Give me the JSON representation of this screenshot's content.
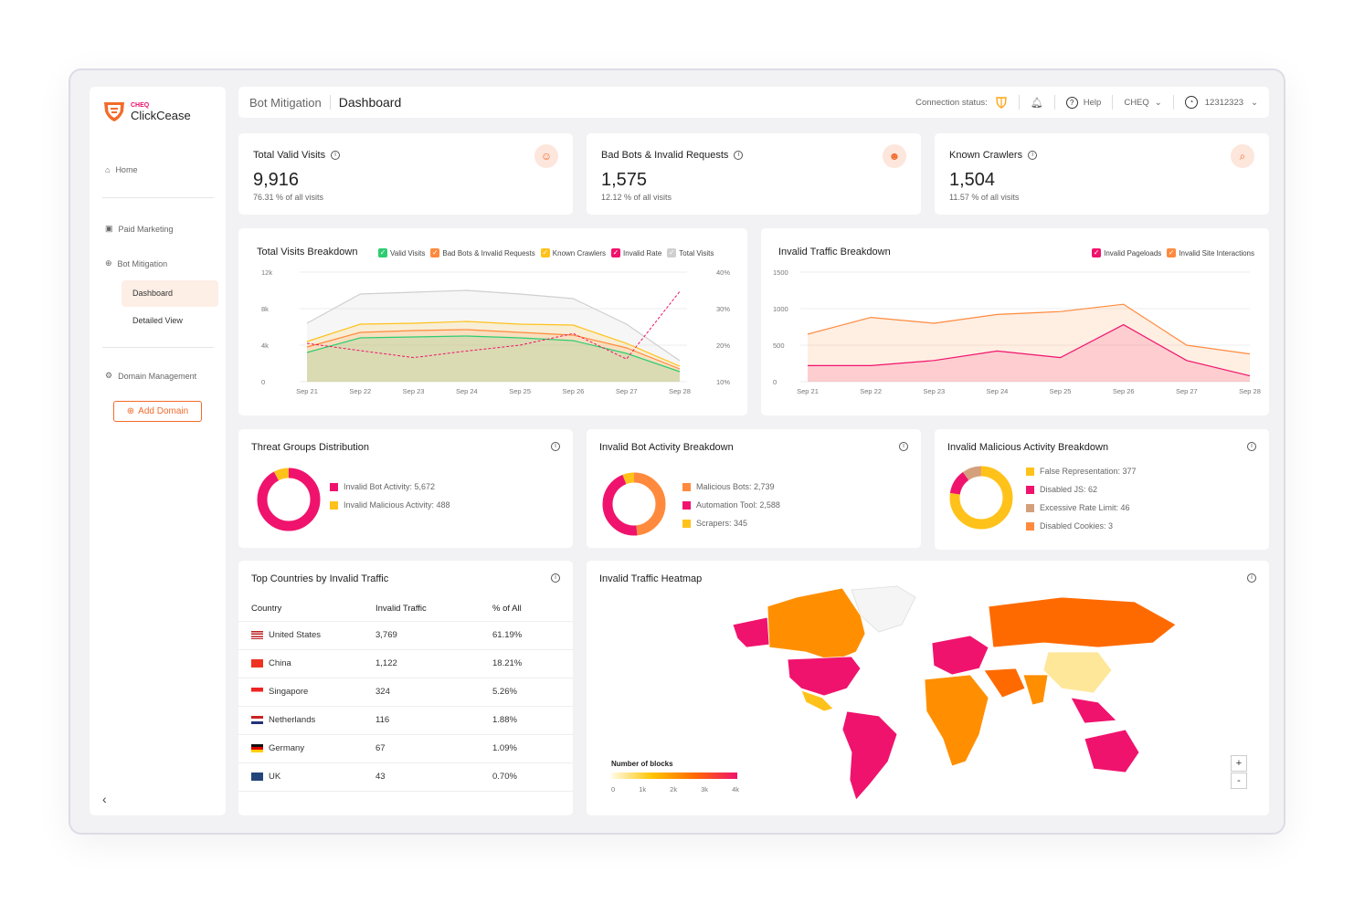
{
  "brand": {
    "top": "CHEQ",
    "name": "ClickCease"
  },
  "sidebar": {
    "home": "Home",
    "paid": "Paid Marketing",
    "bot": "Bot Mitigation",
    "dashboard": "Dashboard",
    "detailed": "Detailed View",
    "domain": "Domain Management",
    "add_domain": "Add Domain",
    "collapse": "‹"
  },
  "header": {
    "breadcrumb": "Bot Mitigation",
    "title": "Dashboard",
    "connection": "Connection status:",
    "help": "Help",
    "org": "CHEQ",
    "user": "12312323"
  },
  "kpis": [
    {
      "title": "Total Valid Visits",
      "value": "9,916",
      "sub": "76.31 % of all visits"
    },
    {
      "title": "Bad Bots & Invalid Requests",
      "value": "1,575",
      "sub": "12.12 % of all visits"
    },
    {
      "title": "Known Crawlers",
      "value": "1,504",
      "sub": "11.57 % of all visits"
    }
  ],
  "colors": {
    "green": "#2ecc71",
    "orange": "#ff8a3d",
    "yellow": "#ffc21a",
    "pink": "#f0136d",
    "gray": "#cfcfcf"
  },
  "chart_data": [
    {
      "type": "area",
      "title": "Total Visits Breakdown",
      "x": [
        "Sep 21",
        "Sep 22",
        "Sep 23",
        "Sep 24",
        "Sep 25",
        "Sep 26",
        "Sep 27",
        "Sep 28"
      ],
      "yticks": [
        "0",
        "4k",
        "8k",
        "12k"
      ],
      "ylim": [
        0,
        12000
      ],
      "y2ticks": [
        "10%",
        "20%",
        "30%",
        "40%"
      ],
      "y2lim": [
        10,
        40
      ],
      "series": [
        {
          "name": "Total Visits",
          "color": "#cfcfcf",
          "values": [
            6400,
            9600,
            9800,
            10000,
            9600,
            9100,
            6300,
            2300
          ]
        },
        {
          "name": "Known Crawlers",
          "color": "#ffc21a",
          "values": [
            4400,
            6300,
            6400,
            6600,
            6300,
            6200,
            4200,
            1700
          ]
        },
        {
          "name": "Bad Bots & Invalid Requests",
          "color": "#ff8a3d",
          "values": [
            3800,
            5400,
            5600,
            5700,
            5400,
            5100,
            3700,
            1400
          ]
        },
        {
          "name": "Valid Visits",
          "color": "#2ecc71",
          "values": [
            3200,
            4800,
            4900,
            5000,
            4800,
            4500,
            3100,
            1100
          ]
        },
        {
          "name": "Invalid Rate",
          "color": "#f0136d",
          "axis": "right",
          "values": [
            20.5,
            18.5,
            16.6,
            18.4,
            20,
            23.2,
            16.2,
            34.7
          ]
        }
      ],
      "legend": [
        "Valid Visits",
        "Bad Bots & Invalid Requests",
        "Known Crawlers",
        "Invalid Rate",
        "Total Visits"
      ]
    },
    {
      "type": "area",
      "title": "Invalid Traffic Breakdown",
      "x": [
        "Sep 21",
        "Sep 22",
        "Sep 23",
        "Sep 24",
        "Sep 25",
        "Sep 26",
        "Sep 27",
        "Sep 28"
      ],
      "yticks": [
        "0",
        "500",
        "1000",
        "1500"
      ],
      "ylim": [
        0,
        1500
      ],
      "series": [
        {
          "name": "Invalid Site Interactions",
          "color": "#ff8a3d",
          "values": [
            650,
            880,
            800,
            920,
            960,
            1060,
            500,
            380
          ]
        },
        {
          "name": "Invalid Pageloads",
          "color": "#f0136d",
          "values": [
            220,
            220,
            290,
            420,
            330,
            780,
            290,
            80
          ]
        }
      ],
      "legend": [
        "Invalid Pageloads",
        "Invalid Site Interactions"
      ]
    },
    {
      "type": "pie",
      "title": "Threat Groups Distribution",
      "slices": [
        {
          "label": "Invalid Bot Activity: 5,672",
          "value": 5672,
          "color": "#f0136d"
        },
        {
          "label": "Invalid Malicious Activity: 488",
          "value": 488,
          "color": "#ffc21a"
        }
      ]
    },
    {
      "type": "pie",
      "title": "Invalid Bot Activity Breakdown",
      "slices": [
        {
          "label": "Malicious Bots: 2,739",
          "value": 2739,
          "color": "#ff8a3d"
        },
        {
          "label": "Automation Tool: 2,588",
          "value": 2588,
          "color": "#f0136d"
        },
        {
          "label": "Scrapers: 345",
          "value": 345,
          "color": "#ffc21a"
        }
      ]
    },
    {
      "type": "pie",
      "title": "Invalid Malicious Activity Breakdown",
      "slices": [
        {
          "label": "False Representation: 377",
          "value": 377,
          "color": "#ffc21a"
        },
        {
          "label": "Disabled JS: 62",
          "value": 62,
          "color": "#f0136d"
        },
        {
          "label": "Excessive Rate Limit: 46",
          "value": 46,
          "color": "#d4a07c"
        },
        {
          "label": "Disabled Cookies: 3",
          "value": 3,
          "color": "#ff8a3d"
        }
      ]
    }
  ],
  "countries": {
    "title": "Top Countries by Invalid Traffic",
    "headers": [
      "Country",
      "Invalid Traffic",
      "% of All"
    ],
    "rows": [
      [
        "United States",
        "3,769",
        "61.19%"
      ],
      [
        "China",
        "1,122",
        "18.21%"
      ],
      [
        "Singapore",
        "324",
        "5.26%"
      ],
      [
        "Netherlands",
        "116",
        "1.88%"
      ],
      [
        "Germany",
        "67",
        "1.09%"
      ],
      [
        "UK",
        "43",
        "0.70%"
      ]
    ]
  },
  "heatmap": {
    "title": "Invalid Traffic Heatmap",
    "legend_title": "Number of blocks",
    "ticks": [
      "0",
      "1k",
      "2k",
      "3k",
      "4k"
    ],
    "zoom_in": "+",
    "zoom_out": "-"
  }
}
